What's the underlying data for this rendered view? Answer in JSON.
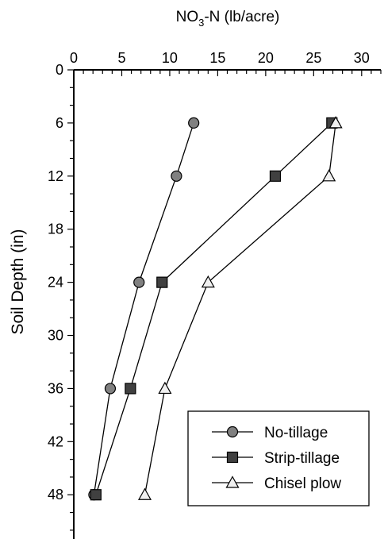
{
  "chart_data": {
    "type": "line",
    "title": "",
    "xlabel": {
      "prefix": "NO",
      "subscript": "3",
      "suffix": "-N (lb/acre)"
    },
    "ylabel": "Soil Depth (in)",
    "x_axis_position": "top",
    "y_inverted": true,
    "xlim": [
      0,
      32
    ],
    "ylim": [
      0,
      53
    ],
    "xticks": [
      0,
      5,
      10,
      15,
      20,
      25,
      30
    ],
    "yticks": [
      0,
      6,
      12,
      18,
      24,
      30,
      36,
      42,
      48
    ],
    "x_minor_step": 1,
    "y_minor_step": 2,
    "grid": false,
    "legend_position": "bottom-right",
    "series": [
      {
        "name": "No-tillage",
        "marker": "circle",
        "color": "#808080",
        "points": [
          {
            "x": 12.5,
            "y": 6
          },
          {
            "x": 10.7,
            "y": 12
          },
          {
            "x": 6.8,
            "y": 24
          },
          {
            "x": 3.8,
            "y": 36
          },
          {
            "x": 2.1,
            "y": 48
          }
        ]
      },
      {
        "name": "Strip-tillage",
        "marker": "square",
        "color": "#404040",
        "points": [
          {
            "x": 26.9,
            "y": 6
          },
          {
            "x": 21.0,
            "y": 12
          },
          {
            "x": 9.2,
            "y": 24
          },
          {
            "x": 5.9,
            "y": 36
          },
          {
            "x": 2.3,
            "y": 48
          }
        ]
      },
      {
        "name": "Chisel plow",
        "marker": "triangle",
        "color": "#f0f0f0",
        "points": [
          {
            "x": 27.3,
            "y": 6
          },
          {
            "x": 26.6,
            "y": 12
          },
          {
            "x": 14.0,
            "y": 24
          },
          {
            "x": 9.5,
            "y": 36
          },
          {
            "x": 7.4,
            "y": 48
          }
        ]
      }
    ]
  }
}
